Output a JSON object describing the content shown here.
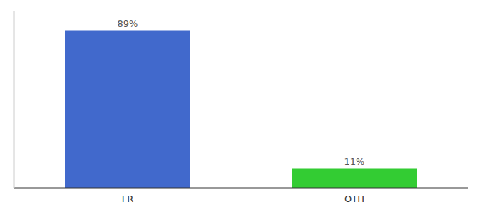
{
  "chart_data": {
    "type": "bar",
    "categories": [
      "FR",
      "OTH"
    ],
    "values": [
      89,
      11
    ],
    "value_labels": [
      "89%",
      "11%"
    ],
    "colors": [
      "#4169CC",
      "#33CC33"
    ],
    "ylim": [
      0,
      100
    ],
    "data_labels": true,
    "tick_labels": "x"
  }
}
